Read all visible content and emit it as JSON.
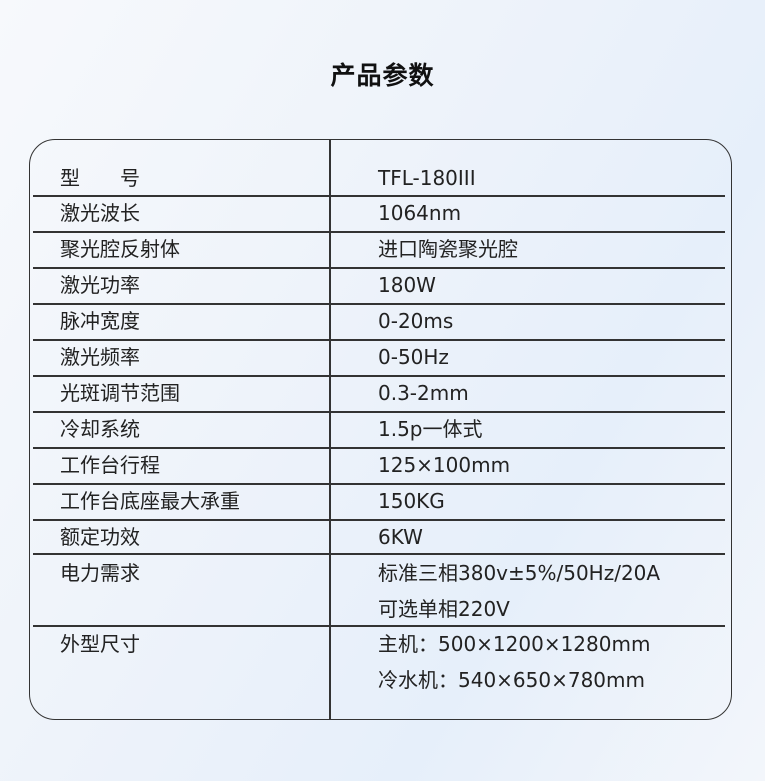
{
  "title": "产品参数",
  "rows": [
    {
      "label": "型　　号",
      "value": [
        "TFL-180III"
      ]
    },
    {
      "label": "激光波长",
      "value": [
        "1064nm"
      ]
    },
    {
      "label": "聚光腔反射体",
      "value": [
        "进口陶瓷聚光腔"
      ]
    },
    {
      "label": "激光功率",
      "value": [
        "180W"
      ]
    },
    {
      "label": "脉冲宽度",
      "value": [
        "0-20ms"
      ]
    },
    {
      "label": "激光频率",
      "value": [
        "0-50Hz"
      ]
    },
    {
      "label": "光斑调节范围",
      "value": [
        "0.3-2mm"
      ]
    },
    {
      "label": "冷却系统",
      "value": [
        "1.5p一体式"
      ]
    },
    {
      "label": "工作台行程",
      "value": [
        "125×100mm"
      ]
    },
    {
      "label": "工作台底座最大承重",
      "value": [
        "150KG"
      ]
    },
    {
      "label": "额定功效",
      "value": [
        "6KW"
      ]
    },
    {
      "label": "电力需求",
      "value": [
        "标准三相380v±5%/50Hz/20A",
        "可选单相220V"
      ]
    },
    {
      "label": "外型尺寸",
      "value": [
        "主机：500×1200×1280mm",
        "冷水机：540×650×780mm"
      ]
    }
  ]
}
